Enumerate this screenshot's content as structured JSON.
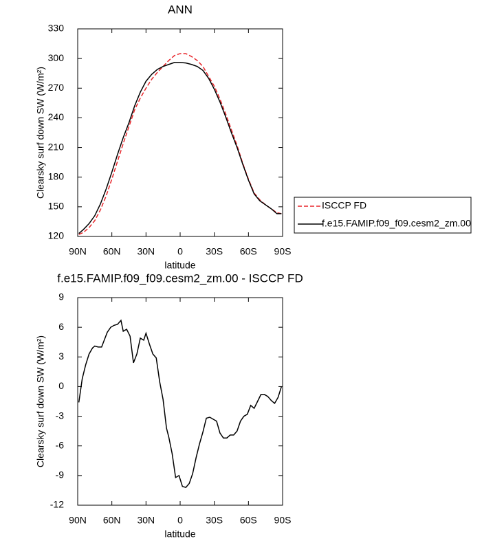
{
  "chart_data": [
    {
      "type": "line",
      "title": "ANN",
      "xlabel": "latitude",
      "ylabel": "Clearsky surf down SW (W/m²)",
      "x": [
        89,
        85,
        80,
        75,
        70,
        65,
        60,
        55,
        50,
        45,
        40,
        35,
        30,
        25,
        20,
        15,
        10,
        5,
        0,
        -5,
        -10,
        -15,
        -20,
        -25,
        -30,
        -35,
        -40,
        -45,
        -50,
        -55,
        -60,
        -65,
        -70,
        -75,
        -80,
        -85,
        -89
      ],
      "series": [
        {
          "name": "ISCCP FD",
          "color": "#e8262b",
          "dash": "dashed",
          "values": [
            122,
            124,
            129,
            136,
            147,
            161,
            178,
            196,
            214,
            231,
            248,
            260,
            270,
            279,
            286,
            292,
            298,
            303,
            305,
            305,
            302,
            298,
            292,
            282,
            272,
            259,
            244,
            228,
            212,
            194,
            178,
            164,
            157,
            152,
            148,
            144,
            143
          ]
        },
        {
          "name": "f.e15.FAMIP.f09_f09.cesm2_zm.00",
          "color": "#000000",
          "dash": "solid",
          "values": [
            123,
            127,
            133,
            141,
            153,
            168,
            185,
            203,
            220,
            235,
            252,
            266,
            277,
            284,
            289,
            292,
            294,
            296,
            296,
            295.5,
            294,
            292,
            288,
            280,
            269,
            256,
            241,
            225,
            210,
            193,
            177,
            163,
            156,
            152,
            148,
            143,
            143
          ]
        }
      ],
      "xlim": [
        90,
        -90
      ],
      "xticks": [
        {
          "value": 90,
          "label": "90N"
        },
        {
          "value": 60,
          "label": "60N"
        },
        {
          "value": 30,
          "label": "30N"
        },
        0,
        {
          "value": -30,
          "label": "30S"
        },
        {
          "value": -60,
          "label": "60S"
        },
        {
          "value": -90,
          "label": "90S"
        }
      ],
      "ylim": [
        120,
        330
      ],
      "yticks": [
        120,
        150,
        180,
        210,
        240,
        270,
        300,
        330
      ],
      "legend": "right"
    },
    {
      "type": "line",
      "title": "f.e15.FAMIP.f09_f09.cesm2_zm.00 - ISCCP FD",
      "xlabel": "latitude",
      "ylabel": "Clearsky surf down SW (W/m²)",
      "x": [
        89,
        86,
        83,
        80,
        77,
        75,
        72,
        69,
        67,
        64,
        61,
        58,
        55,
        52,
        50,
        47,
        44,
        41,
        38,
        35,
        32,
        30,
        27,
        24,
        21,
        18,
        15,
        12,
        10,
        7,
        4,
        1,
        -2,
        -5,
        -8,
        -11,
        -14,
        -17,
        -20,
        -23,
        -26,
        -29,
        -32,
        -35,
        -38,
        -41,
        -44,
        -47,
        -50,
        -53,
        -56,
        -59,
        -62,
        -65,
        -68,
        -71,
        -74,
        -77,
        -80,
        -83,
        -86,
        -89
      ],
      "series": [
        {
          "color": "#000000",
          "dash": "solid",
          "values": [
            -1.6,
            0.8,
            2.2,
            3.3,
            3.9,
            4.1,
            4.0,
            4.0,
            4.6,
            5.5,
            6.0,
            6.2,
            6.3,
            6.7,
            5.6,
            5.8,
            5.1,
            2.4,
            3.3,
            4.9,
            4.7,
            5.4,
            4.3,
            3.3,
            2.9,
            0.5,
            -1.3,
            -4.2,
            -5.1,
            -6.8,
            -9.2,
            -9.0,
            -10.1,
            -10.2,
            -9.8,
            -8.8,
            -7.2,
            -5.8,
            -4.6,
            -3.2,
            -3.1,
            -3.3,
            -3.5,
            -4.7,
            -5.2,
            -5.2,
            -4.9,
            -4.9,
            -4.5,
            -3.5,
            -3.0,
            -2.8,
            -1.9,
            -2.2,
            -1.5,
            -0.8,
            -0.8,
            -1.0,
            -1.4,
            -1.7,
            -1.1,
            0.0
          ]
        }
      ],
      "xlim": [
        90,
        -90
      ],
      "xticks": [
        {
          "value": 90,
          "label": "90N"
        },
        {
          "value": 60,
          "label": "60N"
        },
        {
          "value": 30,
          "label": "30N"
        },
        0,
        {
          "value": -30,
          "label": "30S"
        },
        {
          "value": -60,
          "label": "60S"
        },
        {
          "value": -90,
          "label": "90S"
        }
      ],
      "ylim": [
        -12,
        9
      ],
      "yticks": [
        -12,
        -9,
        -6,
        -3,
        0,
        3,
        6,
        9
      ]
    }
  ]
}
